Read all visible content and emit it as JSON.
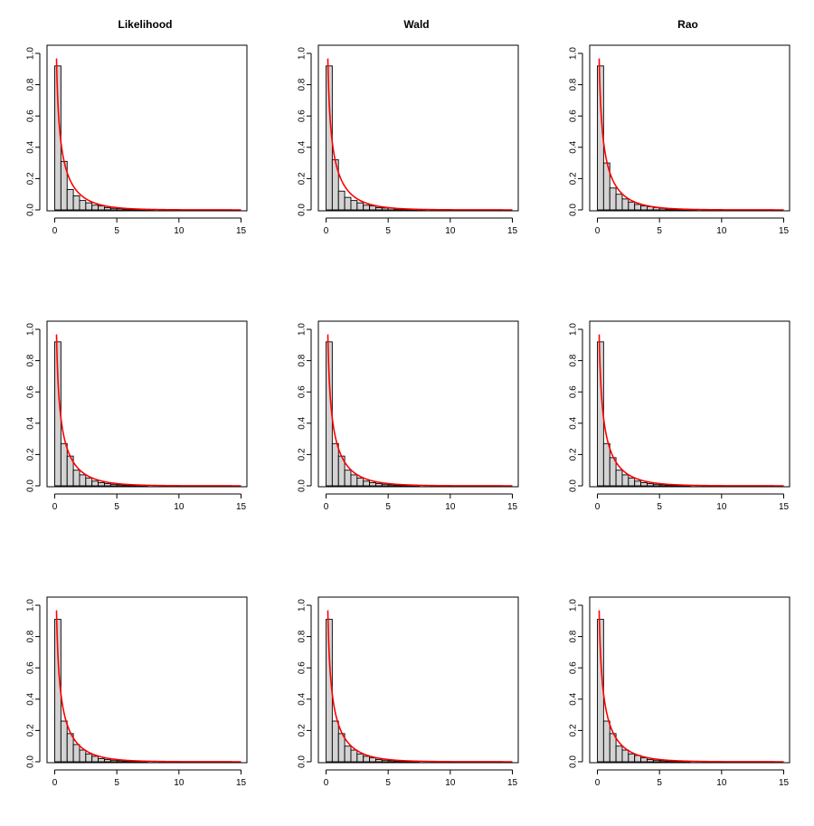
{
  "figure": {
    "background": "#ffffff",
    "bar_fill": "#d3d3d3",
    "bar_stroke": "#000000",
    "curve_color": "#ff0000"
  },
  "chart_data": [
    {
      "type": "bar",
      "title": "Likelihood",
      "row": 1,
      "col": 1,
      "bin_width": 0.5,
      "x_start": 0,
      "values": [
        0.92,
        0.31,
        0.13,
        0.09,
        0.06,
        0.045,
        0.03,
        0.025,
        0.015,
        0.01,
        0.008,
        0.006,
        0.004,
        0.003,
        0.002,
        0.001
      ],
      "curve": "density",
      "xlim": [
        0,
        15
      ],
      "ylim": [
        0,
        1.0
      ],
      "x_ticks": [
        0,
        5,
        10,
        15
      ],
      "y_ticks": [
        0.0,
        0.2,
        0.4,
        0.6,
        0.8,
        1.0
      ]
    },
    {
      "type": "bar",
      "title": "Wald",
      "row": 1,
      "col": 2,
      "bin_width": 0.5,
      "x_start": 0,
      "values": [
        0.92,
        0.32,
        0.12,
        0.08,
        0.06,
        0.045,
        0.03,
        0.025,
        0.015,
        0.012,
        0.012,
        0.006,
        0.005,
        0.004,
        0.003,
        0.002
      ],
      "curve": "density",
      "xlim": [
        0,
        15
      ],
      "ylim": [
        0,
        1.0
      ],
      "x_ticks": [
        0,
        5,
        10,
        15
      ],
      "y_ticks": [
        0.0,
        0.2,
        0.4,
        0.6,
        0.8,
        1.0
      ]
    },
    {
      "type": "bar",
      "title": "Rao",
      "row": 1,
      "col": 3,
      "bin_width": 0.5,
      "x_start": 0,
      "values": [
        0.92,
        0.3,
        0.14,
        0.1,
        0.07,
        0.05,
        0.035,
        0.025,
        0.02,
        0.015,
        0.01,
        0.006,
        0.004,
        0.003,
        0.002,
        0.001
      ],
      "curve": "density",
      "xlim": [
        0,
        15
      ],
      "ylim": [
        0,
        1.0
      ],
      "x_ticks": [
        0,
        5,
        10,
        15
      ],
      "y_ticks": [
        0.0,
        0.2,
        0.4,
        0.6,
        0.8,
        1.0
      ]
    },
    {
      "type": "bar",
      "title": "",
      "row": 2,
      "col": 1,
      "bin_width": 0.5,
      "x_start": 0,
      "values": [
        0.92,
        0.27,
        0.19,
        0.1,
        0.07,
        0.05,
        0.03,
        0.02,
        0.015,
        0.01,
        0.007,
        0.005,
        0.003,
        0.002,
        0.001
      ],
      "curve": "density",
      "xlim": [
        0,
        15
      ],
      "ylim": [
        0,
        1.0
      ],
      "x_ticks": [
        0,
        5,
        10,
        15
      ],
      "y_ticks": [
        0.0,
        0.2,
        0.4,
        0.6,
        0.8,
        1.0
      ]
    },
    {
      "type": "bar",
      "title": "",
      "row": 2,
      "col": 2,
      "bin_width": 0.5,
      "x_start": 0,
      "values": [
        0.92,
        0.27,
        0.19,
        0.1,
        0.07,
        0.05,
        0.03,
        0.02,
        0.015,
        0.01,
        0.007,
        0.005,
        0.003,
        0.002,
        0.001
      ],
      "curve": "density",
      "xlim": [
        0,
        15
      ],
      "ylim": [
        0,
        1.0
      ],
      "x_ticks": [
        0,
        5,
        10,
        15
      ],
      "y_ticks": [
        0.0,
        0.2,
        0.4,
        0.6,
        0.8,
        1.0
      ]
    },
    {
      "type": "bar",
      "title": "",
      "row": 2,
      "col": 3,
      "bin_width": 0.5,
      "x_start": 0,
      "values": [
        0.92,
        0.27,
        0.18,
        0.1,
        0.07,
        0.05,
        0.03,
        0.02,
        0.015,
        0.01,
        0.007,
        0.005,
        0.003,
        0.002,
        0.001
      ],
      "curve": "density",
      "xlim": [
        0,
        15
      ],
      "ylim": [
        0,
        1.0
      ],
      "x_ticks": [
        0,
        5,
        10,
        15
      ],
      "y_ticks": [
        0.0,
        0.2,
        0.4,
        0.6,
        0.8,
        1.0
      ]
    },
    {
      "type": "bar",
      "title": "",
      "row": 3,
      "col": 1,
      "bin_width": 0.5,
      "x_start": 0,
      "values": [
        0.91,
        0.26,
        0.18,
        0.11,
        0.075,
        0.05,
        0.035,
        0.02,
        0.015,
        0.01,
        0.007,
        0.005,
        0.003,
        0.002,
        0.001
      ],
      "curve": "density",
      "xlim": [
        0,
        15
      ],
      "ylim": [
        0,
        1.0
      ],
      "x_ticks": [
        0,
        5,
        10,
        15
      ],
      "y_ticks": [
        0.0,
        0.2,
        0.4,
        0.6,
        0.8,
        1.0
      ]
    },
    {
      "type": "bar",
      "title": "",
      "row": 3,
      "col": 2,
      "bin_width": 0.5,
      "x_start": 0,
      "values": [
        0.91,
        0.26,
        0.18,
        0.1,
        0.075,
        0.05,
        0.035,
        0.025,
        0.015,
        0.01,
        0.007,
        0.005,
        0.003,
        0.002,
        0.001
      ],
      "curve": "density",
      "xlim": [
        0,
        15
      ],
      "ylim": [
        0,
        1.0
      ],
      "x_ticks": [
        0,
        5,
        10,
        15
      ],
      "y_ticks": [
        0.0,
        0.2,
        0.4,
        0.6,
        0.8,
        1.0
      ]
    },
    {
      "type": "bar",
      "title": "",
      "row": 3,
      "col": 3,
      "bin_width": 0.5,
      "x_start": 0,
      "values": [
        0.91,
        0.26,
        0.18,
        0.1,
        0.075,
        0.05,
        0.04,
        0.025,
        0.015,
        0.01,
        0.007,
        0.005,
        0.003,
        0.002,
        0.001
      ],
      "curve": "density",
      "xlim": [
        0,
        15
      ],
      "ylim": [
        0,
        1.0
      ],
      "x_ticks": [
        0,
        5,
        10,
        15
      ],
      "y_ticks": [
        0.0,
        0.2,
        0.4,
        0.6,
        0.8,
        1.0
      ]
    }
  ]
}
